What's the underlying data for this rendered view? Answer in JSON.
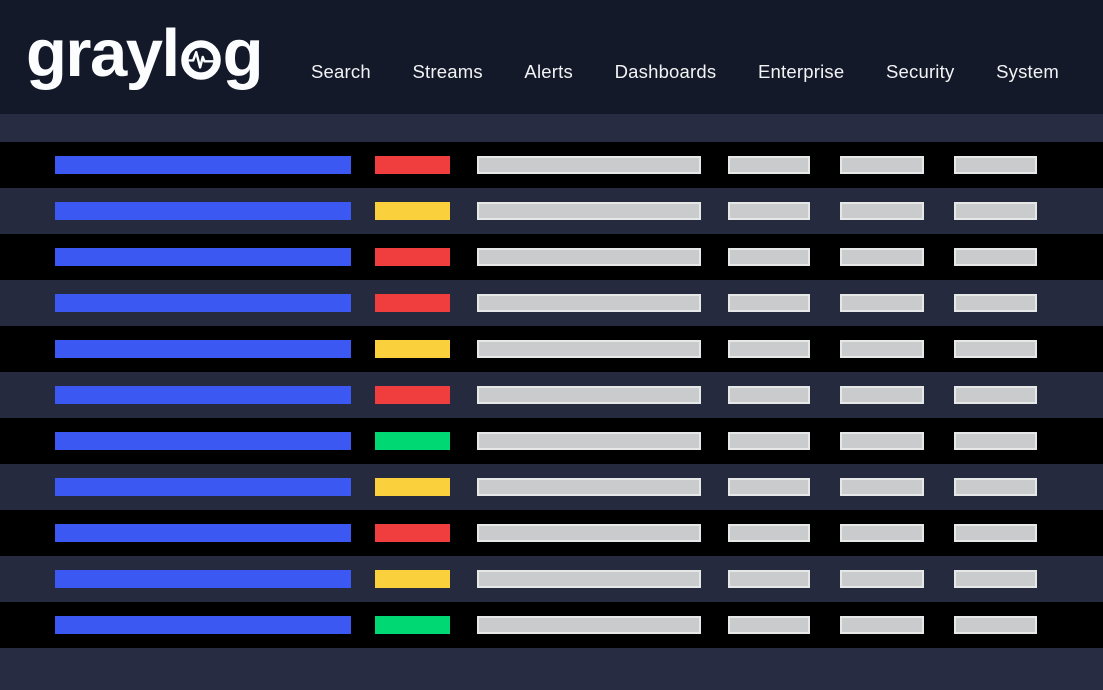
{
  "app": {
    "name": "graylog"
  },
  "header": {
    "logo": {
      "text_before": "grayl",
      "text_after": "g",
      "icon": "pulse-icon"
    },
    "nav_items": [
      {
        "label": "Search"
      },
      {
        "label": "Streams"
      },
      {
        "label": "Alerts"
      },
      {
        "label": "Dashboards"
      },
      {
        "label": "Enterprise"
      },
      {
        "label": "Security"
      },
      {
        "label": "System"
      }
    ]
  },
  "table": {
    "row_count": 11,
    "rows": [
      {
        "status": "red"
      },
      {
        "status": "yellow"
      },
      {
        "status": "red"
      },
      {
        "status": "red"
      },
      {
        "status": "yellow"
      },
      {
        "status": "red"
      },
      {
        "status": "green"
      },
      {
        "status": "yellow"
      },
      {
        "status": "red"
      },
      {
        "status": "yellow"
      },
      {
        "status": "green"
      }
    ]
  },
  "colors": {
    "header_bg": "#141929",
    "strip_bg": "#272c42",
    "row_dark_bg": "#000000",
    "row_navy_bg": "#252a3f",
    "message_bar_blue": "#3b58f2",
    "status_red": "#ef3e3d",
    "status_yellow": "#fbd03d",
    "status_green": "#00d873",
    "placeholder_fill": "#c9cbcc",
    "placeholder_border": "#e6e7e7",
    "nav_text": "#f2f3f5"
  }
}
